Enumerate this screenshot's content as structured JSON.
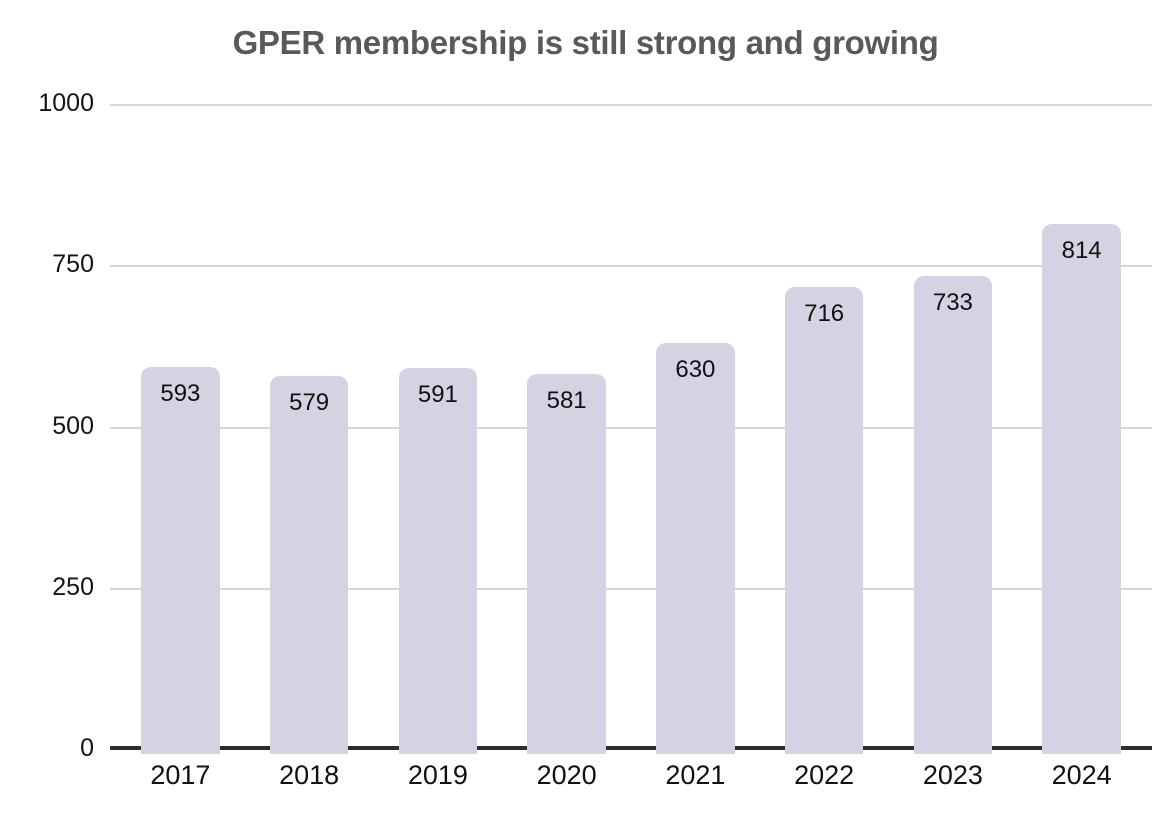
{
  "title": "GPER membership is still strong and growing",
  "colors": {
    "bar_fill": "#d6d1e3",
    "gridline": "#d6d6d6",
    "baseline": "#2d2d2d",
    "title_text": "#595959",
    "label_text": "#111111"
  },
  "chart_data": {
    "type": "bar",
    "title": "GPER membership is still strong and growing",
    "categories": [
      "2017",
      "2018",
      "2019",
      "2020",
      "2021",
      "2022",
      "2023",
      "2024"
    ],
    "values": [
      593,
      579,
      591,
      581,
      630,
      716,
      733,
      814
    ],
    "bar_value_labels": [
      "593",
      "579",
      "591",
      "581",
      "630",
      "716",
      "733",
      "814"
    ],
    "xlabel": "",
    "ylabel": "",
    "ylim": [
      0,
      1000
    ],
    "yticks": [
      0,
      250,
      500,
      750,
      1000
    ],
    "grid": true,
    "legend": false
  }
}
